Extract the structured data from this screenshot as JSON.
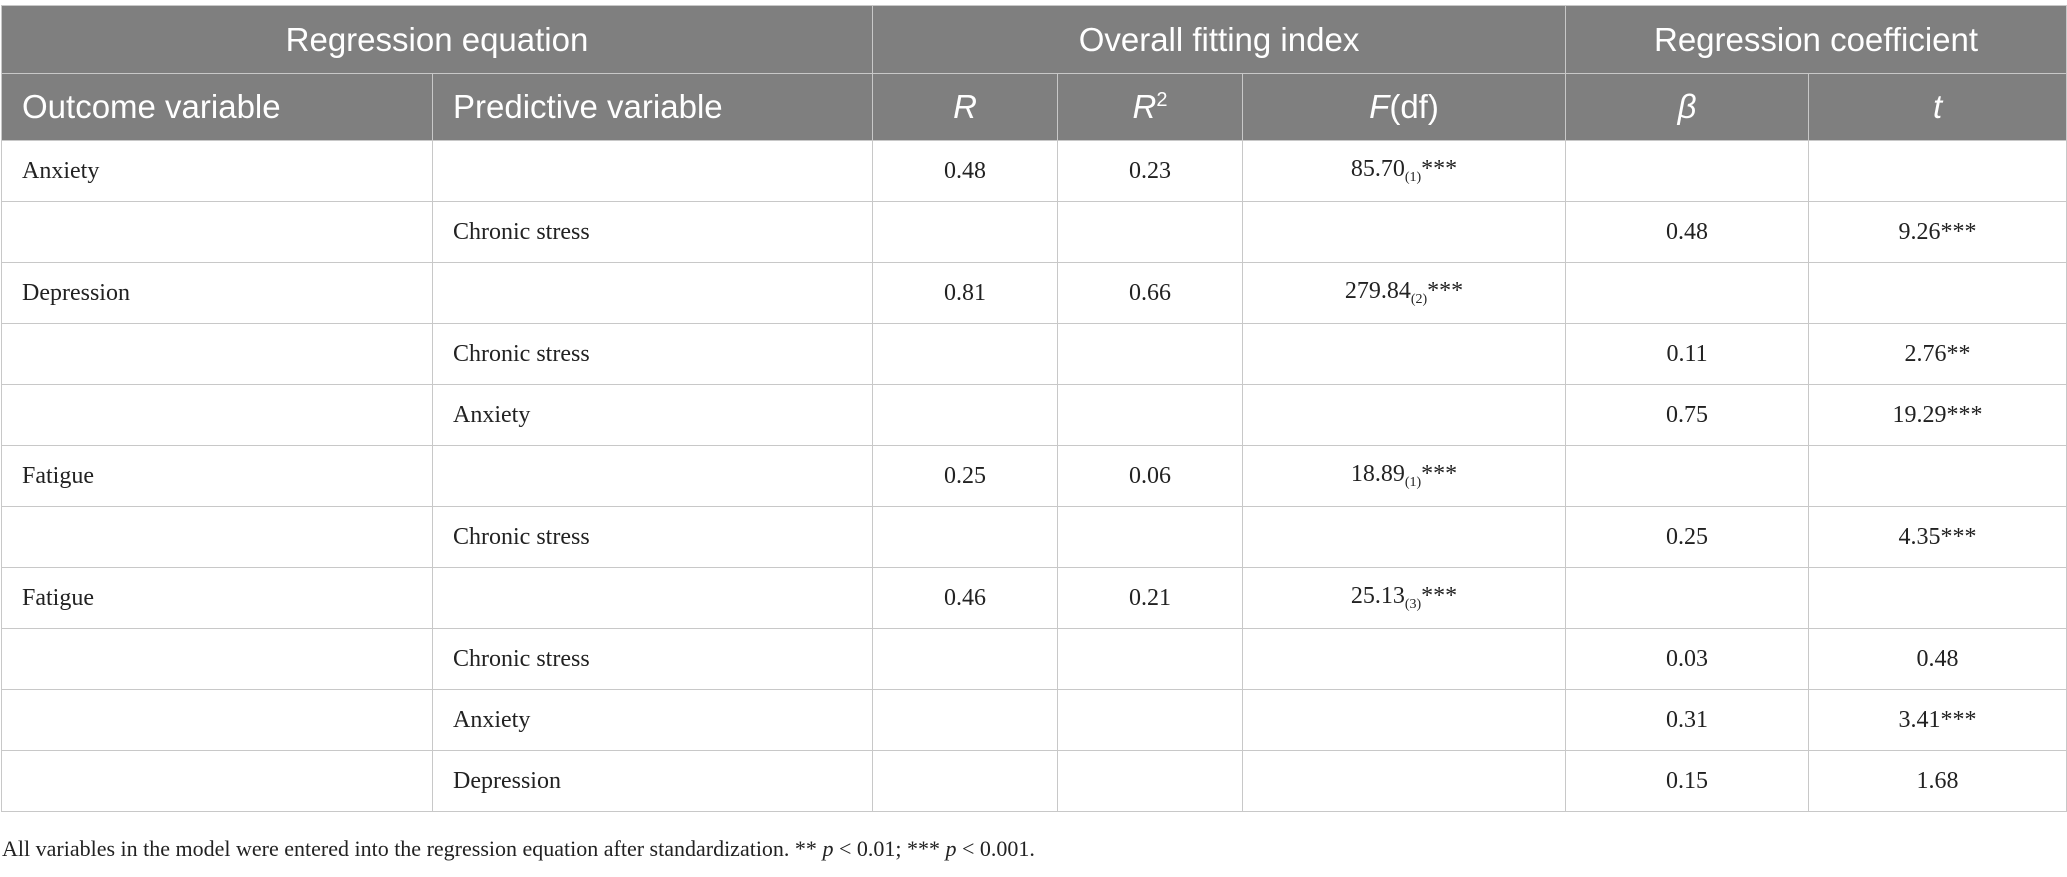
{
  "table": {
    "group_headers": {
      "regression_equation": "Regression equation",
      "overall_fitting_index": "Overall fitting index",
      "regression_coefficient": "Regression coefficient"
    },
    "column_headers": {
      "outcome_variable": "Outcome variable",
      "predictive_variable": "Predictive variable",
      "r": "R",
      "r2_base": "R",
      "r2_sup": "2",
      "f_italic": "F",
      "f_rest": "(df)",
      "beta": "β",
      "t": "t"
    },
    "rows": [
      {
        "outcome": "Anxiety",
        "predictor": "",
        "r": "0.48",
        "r2": "0.23",
        "f": "85.70",
        "df": "(1)",
        "f_sig": "***",
        "beta": "",
        "t": ""
      },
      {
        "outcome": "",
        "predictor": "Chronic stress",
        "r": "",
        "r2": "",
        "f": "",
        "df": "",
        "f_sig": "",
        "beta": "0.48",
        "t": "9.26***"
      },
      {
        "outcome": "Depression",
        "predictor": "",
        "r": "0.81",
        "r2": "0.66",
        "f": "279.84",
        "df": "(2)",
        "f_sig": "***",
        "beta": "",
        "t": ""
      },
      {
        "outcome": "",
        "predictor": "Chronic stress",
        "r": "",
        "r2": "",
        "f": "",
        "df": "",
        "f_sig": "",
        "beta": "0.11",
        "t": "2.76**"
      },
      {
        "outcome": "",
        "predictor": "Anxiety",
        "r": "",
        "r2": "",
        "f": "",
        "df": "",
        "f_sig": "",
        "beta": "0.75",
        "t": "19.29***"
      },
      {
        "outcome": "Fatigue",
        "predictor": "",
        "r": "0.25",
        "r2": "0.06",
        "f": "18.89",
        "df": "(1)",
        "f_sig": "***",
        "beta": "",
        "t": ""
      },
      {
        "outcome": "",
        "predictor": "Chronic stress",
        "r": "",
        "r2": "",
        "f": "",
        "df": "",
        "f_sig": "",
        "beta": "0.25",
        "t": "4.35***"
      },
      {
        "outcome": "Fatigue",
        "predictor": "",
        "r": "0.46",
        "r2": "0.21",
        "f": "25.13",
        "df": "(3)",
        "f_sig": "***",
        "beta": "",
        "t": ""
      },
      {
        "outcome": "",
        "predictor": "Chronic stress",
        "r": "",
        "r2": "",
        "f": "",
        "df": "",
        "f_sig": "",
        "beta": "0.03",
        "t": "0.48"
      },
      {
        "outcome": "",
        "predictor": "Anxiety",
        "r": "",
        "r2": "",
        "f": "",
        "df": "",
        "f_sig": "",
        "beta": "0.31",
        "t": "3.41***"
      },
      {
        "outcome": "",
        "predictor": "Depression",
        "r": "",
        "r2": "",
        "f": "",
        "df": "",
        "f_sig": "",
        "beta": "0.15",
        "t": "1.68"
      }
    ]
  },
  "note": {
    "part1": "All variables in the model were entered into the regression equation after standardization. ** ",
    "p1": "p",
    "part2": " < 0.01; *** ",
    "p2": "p",
    "part3": " < 0.001."
  },
  "colors": {
    "header_bg": "#7f7f7f",
    "header_text": "#ffffff",
    "grid_line": "#c8c8c8",
    "body_text": "#222222"
  }
}
